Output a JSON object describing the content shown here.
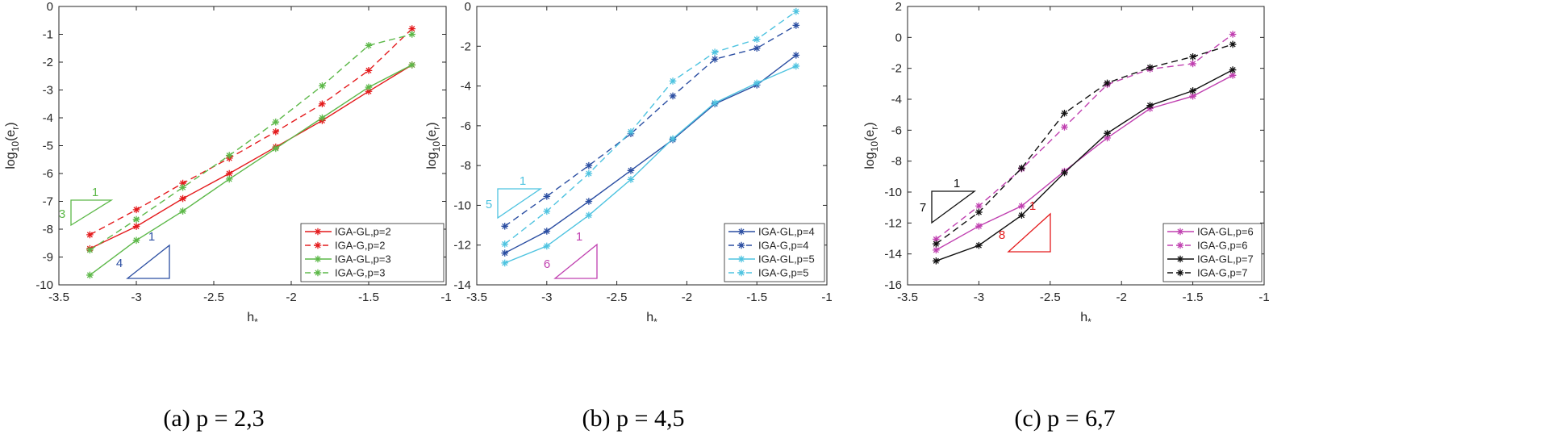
{
  "chart_data": [
    {
      "type": "line",
      "caption": "(a) p = 2,3",
      "xlabel": "h",
      "xlabel_sub": "*",
      "ylabel": "log",
      "ylabel_sub1": "10",
      "ylabel_mid": "(e",
      "ylabel_sub2": "r",
      "ylabel_end": ")",
      "xlim": [
        -3.5,
        -1
      ],
      "ylim": [
        -10,
        0
      ],
      "xticks": [
        -3.5,
        -3,
        -2.5,
        -2,
        -1.5,
        -1
      ],
      "xtick_labels": [
        "-3.5",
        "-3",
        "-2.5",
        "-2",
        "-1.5",
        "-1"
      ],
      "yticks": [
        0,
        -1,
        -2,
        -3,
        -4,
        -5,
        -6,
        -7,
        -8,
        -9,
        -10
      ],
      "ytick_labels": [
        "0",
        "-1",
        "-2",
        "-3",
        "-4",
        "-5",
        "-6",
        "-7",
        "-8",
        "-9",
        "-10"
      ],
      "series": [
        {
          "name": "IGA-GL,p=2",
          "color": "#e41a1c",
          "dash": false,
          "x": [
            -3.3,
            -3.0,
            -2.7,
            -2.4,
            -2.1,
            -1.8,
            -1.5,
            -1.22
          ],
          "y": [
            -8.7,
            -7.9,
            -6.9,
            -6.0,
            -5.05,
            -4.1,
            -3.05,
            -2.1
          ]
        },
        {
          "name": "IGA-G,p=2",
          "color": "#e41a1c",
          "dash": true,
          "x": [
            -3.3,
            -3.0,
            -2.7,
            -2.4,
            -2.1,
            -1.8,
            -1.5,
            -1.22
          ],
          "y": [
            -8.2,
            -7.3,
            -6.35,
            -5.45,
            -4.5,
            -3.5,
            -2.3,
            -0.8
          ]
        },
        {
          "name": "IGA-GL,p=3",
          "color": "#5cb848",
          "dash": false,
          "x": [
            -3.3,
            -3.0,
            -2.7,
            -2.4,
            -2.1,
            -1.8,
            -1.5,
            -1.22
          ],
          "y": [
            -9.65,
            -8.4,
            -7.35,
            -6.2,
            -5.1,
            -4.0,
            -2.9,
            -2.1
          ]
        },
        {
          "name": "IGA-G,p=3",
          "color": "#5cb848",
          "dash": true,
          "x": [
            -3.3,
            -3.0,
            -2.7,
            -2.4,
            -2.1,
            -1.8,
            -1.5,
            -1.22
          ],
          "y": [
            -8.75,
            -7.65,
            -6.5,
            -5.35,
            -4.15,
            -2.85,
            -1.4,
            -1.0
          ]
        }
      ],
      "slope_triangles": [
        {
          "rise_label": "3",
          "run_label": "1",
          "color": "#5cb848",
          "orientation": "top"
        },
        {
          "rise_label": "4",
          "run_label": "1",
          "color": "#2b4ea2",
          "orientation": "bottom"
        }
      ]
    },
    {
      "type": "line",
      "caption": "(b) p = 4,5",
      "xlabel": "h",
      "xlabel_sub": "*",
      "ylabel": "log",
      "ylabel_sub1": "10",
      "ylabel_mid": "(e",
      "ylabel_sub2": "r",
      "ylabel_end": ")",
      "xlim": [
        -3.5,
        -1
      ],
      "ylim": [
        -14,
        0
      ],
      "xticks": [
        -3.5,
        -3,
        -2.5,
        -2,
        -1.5,
        -1
      ],
      "xtick_labels": [
        "-3.5",
        "-3",
        "-2.5",
        "-2",
        "-1.5",
        "-1"
      ],
      "yticks": [
        0,
        -2,
        -4,
        -6,
        -8,
        -10,
        -12,
        -14
      ],
      "ytick_labels": [
        "0",
        "-2",
        "-4",
        "-6",
        "-8",
        "-10",
        "-12",
        "-14"
      ],
      "series": [
        {
          "name": "IGA-GL,p=4",
          "color": "#2b4ea2",
          "dash": false,
          "x": [
            -3.3,
            -3.0,
            -2.7,
            -2.4,
            -2.1,
            -1.8,
            -1.5,
            -1.22
          ],
          "y": [
            -12.4,
            -11.3,
            -9.8,
            -8.25,
            -6.7,
            -4.9,
            -3.95,
            -2.45
          ]
        },
        {
          "name": "IGA-G,p=4",
          "color": "#2b4ea2",
          "dash": true,
          "x": [
            -3.3,
            -3.0,
            -2.7,
            -2.4,
            -2.1,
            -1.8,
            -1.5,
            -1.22
          ],
          "y": [
            -11.05,
            -9.55,
            -8.0,
            -6.4,
            -4.5,
            -2.65,
            -2.1,
            -0.95
          ]
        },
        {
          "name": "IGA-GL,p=5",
          "color": "#4ec3e0",
          "dash": false,
          "x": [
            -3.3,
            -3.0,
            -2.7,
            -2.4,
            -2.1,
            -1.8,
            -1.5,
            -1.22
          ],
          "y": [
            -12.9,
            -12.05,
            -10.5,
            -8.7,
            -6.65,
            -4.85,
            -3.85,
            -3.0
          ]
        },
        {
          "name": "IGA-G,p=5",
          "color": "#4ec3e0",
          "dash": true,
          "x": [
            -3.3,
            -3.0,
            -2.7,
            -2.4,
            -2.1,
            -1.8,
            -1.5,
            -1.22
          ],
          "y": [
            -11.95,
            -10.3,
            -8.4,
            -6.3,
            -3.75,
            -2.3,
            -1.65,
            -0.25
          ]
        }
      ],
      "slope_triangles": [
        {
          "rise_label": "5",
          "run_label": "1",
          "color": "#4ec3e0",
          "orientation": "top"
        },
        {
          "rise_label": "6",
          "run_label": "1",
          "color": "#c040b0",
          "orientation": "bottom"
        }
      ]
    },
    {
      "type": "line",
      "caption": "(c) p = 6,7",
      "xlabel": "h",
      "xlabel_sub": "*",
      "ylabel": "log",
      "ylabel_sub1": "10",
      "ylabel_mid": "(e",
      "ylabel_sub2": "r",
      "ylabel_end": ")",
      "xlim": [
        -3.5,
        -1
      ],
      "ylim": [
        -16,
        2
      ],
      "xticks": [
        -3.5,
        -3,
        -2.5,
        -2,
        -1.5,
        -1
      ],
      "xtick_labels": [
        "-3.5",
        "-3",
        "-2.5",
        "-2",
        "-1.5",
        "-1"
      ],
      "yticks": [
        2,
        0,
        -2,
        -4,
        -6,
        -8,
        -10,
        -12,
        -14,
        -16
      ],
      "ytick_labels": [
        "2",
        "0",
        "-2",
        "-4",
        "-6",
        "-8",
        "-10",
        "-12",
        "-14",
        "-16"
      ],
      "series": [
        {
          "name": "IGA-GL,p=6",
          "color": "#c040b0",
          "dash": false,
          "x": [
            -3.3,
            -3.0,
            -2.7,
            -2.4,
            -2.1,
            -1.8,
            -1.5,
            -1.22
          ],
          "y": [
            -13.75,
            -12.2,
            -10.9,
            -8.65,
            -6.5,
            -4.6,
            -3.8,
            -2.45
          ]
        },
        {
          "name": "IGA-G,p=6",
          "color": "#c040b0",
          "dash": true,
          "x": [
            -3.3,
            -3.0,
            -2.7,
            -2.4,
            -2.1,
            -1.8,
            -1.5,
            -1.22
          ],
          "y": [
            -13.05,
            -10.9,
            -8.5,
            -5.8,
            -3.05,
            -2.05,
            -1.7,
            0.2
          ]
        },
        {
          "name": "IGA-GL,p=7",
          "color": "#111111",
          "dash": false,
          "x": [
            -3.3,
            -3.0,
            -2.7,
            -2.4,
            -2.1,
            -1.8,
            -1.5,
            -1.22
          ],
          "y": [
            -14.45,
            -13.45,
            -11.5,
            -8.75,
            -6.2,
            -4.4,
            -3.45,
            -2.1
          ]
        },
        {
          "name": "IGA-G,p=7",
          "color": "#111111",
          "dash": true,
          "x": [
            -3.3,
            -3.0,
            -2.7,
            -2.4,
            -2.1,
            -1.8,
            -1.5,
            -1.22
          ],
          "y": [
            -13.35,
            -11.3,
            -8.45,
            -4.9,
            -2.95,
            -1.95,
            -1.25,
            -0.45
          ]
        }
      ],
      "slope_triangles": [
        {
          "rise_label": "7",
          "run_label": "1",
          "color": "#111111",
          "orientation": "top"
        },
        {
          "rise_label": "8",
          "run_label": "1",
          "color": "#e41a1c",
          "orientation": "bottom"
        }
      ]
    }
  ]
}
